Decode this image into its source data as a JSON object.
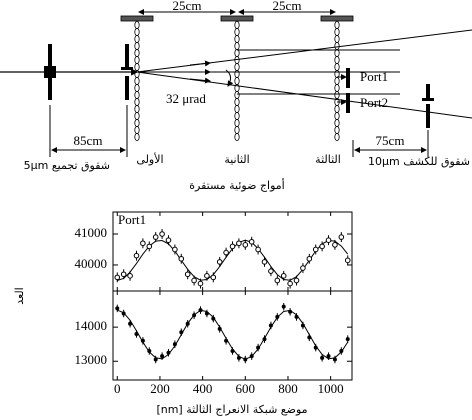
{
  "diagram": {
    "spacings": [
      "25cm",
      "25cm"
    ],
    "ports": [
      "Port1",
      "Port2"
    ],
    "angle": "32 μrad",
    "source_distance": "85cm",
    "detector_distance": "75cm",
    "collimation_slits": "شقوق تجميع 5μm",
    "gratings": [
      "الأولى",
      "الثانية",
      "الثالثة"
    ],
    "detection_slits": "شقوق للكشف 10μm",
    "caption": "أمواج ضوئية مستقرة"
  },
  "chart_data": {
    "type": "scatter",
    "x_label": "موضع شبكة الانعراج الثالثة [nm]",
    "y_label": "العد",
    "x": [
      0,
      30,
      60,
      90,
      120,
      150,
      180,
      210,
      240,
      270,
      300,
      330,
      360,
      390,
      420,
      450,
      480,
      510,
      540,
      570,
      600,
      630,
      660,
      690,
      720,
      750,
      780,
      810,
      840,
      870,
      900,
      930,
      960,
      990,
      1020,
      1050,
      1080
    ],
    "xlim": [
      -20,
      1100
    ],
    "xticks": [
      0,
      200,
      400,
      600,
      800,
      1000
    ],
    "panels": [
      {
        "label": "Port1",
        "ylim": [
          39160,
          41710
        ],
        "yticks": [
          40000,
          41000
        ],
        "yerr": 160,
        "values": [
          39600,
          39700,
          39650,
          40300,
          40700,
          40600,
          40900,
          41000,
          40800,
          40500,
          40200,
          39700,
          39500,
          39400,
          39650,
          39600,
          40100,
          40400,
          40600,
          40700,
          40650,
          40750,
          40500,
          40100,
          39800,
          39500,
          39650,
          39400,
          39500,
          39900,
          40200,
          40500,
          40600,
          40800,
          40650,
          40900,
          40150
        ],
        "fit": [
          39500,
          39570,
          39770,
          40050,
          40350,
          40610,
          40770,
          40790,
          40680,
          40450,
          40150,
          39860,
          39620,
          39510,
          39530,
          39690,
          39950,
          40250,
          40530,
          40730,
          40800,
          40730,
          40530,
          40250,
          39950,
          39690,
          39530,
          39510,
          39620,
          39860,
          40150,
          40450,
          40680,
          40790,
          40770,
          40610,
          40350
        ]
      },
      {
        "ylim": [
          12450,
          15060
        ],
        "yticks": [
          13000,
          14000
        ],
        "yerr": 110,
        "values": [
          14550,
          14400,
          14100,
          13800,
          13600,
          13300,
          13050,
          13150,
          13250,
          13500,
          13850,
          14100,
          14350,
          14500,
          14400,
          14250,
          13950,
          13600,
          13300,
          13100,
          13050,
          13150,
          13400,
          13650,
          14050,
          14300,
          14600,
          14450,
          14300,
          14050,
          13700,
          13400,
          13100,
          13150,
          13050,
          13300,
          13650
        ],
        "fit": [
          14500,
          14420,
          14200,
          13890,
          13560,
          13270,
          13100,
          13070,
          13200,
          13450,
          13780,
          14110,
          14360,
          14490,
          14460,
          14290,
          14000,
          13670,
          13360,
          13140,
          13060,
          13140,
          13360,
          13670,
          14000,
          14290,
          14460,
          14490,
          14360,
          14110,
          13780,
          13450,
          13200,
          13070,
          13100,
          13270,
          13560
        ]
      }
    ]
  }
}
